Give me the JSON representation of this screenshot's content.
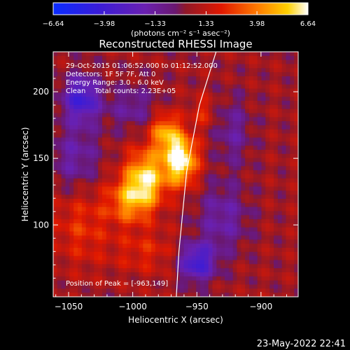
{
  "chart_data": {
    "type": "heatmap",
    "title": "Reconstructed RHESSI Image",
    "xlabel": "Heliocentric X (arcsec)",
    "ylabel": "Heliocentric Y (arcsec)",
    "xlim": [
      -1062,
      -871
    ],
    "ylim": [
      46,
      230
    ],
    "x_ticks": [
      -1050,
      -1000,
      -950,
      -900
    ],
    "x_tick_labels": [
      "−1050",
      "−1000",
      "−950",
      "−900"
    ],
    "y_ticks": [
      100,
      150,
      200
    ],
    "y_tick_labels": [
      "100",
      "150",
      "200"
    ],
    "colorbar": {
      "min": -6.64,
      "max": 6.64,
      "ticks": [
        -6.64,
        -3.98,
        -1.33,
        1.33,
        3.98,
        6.64
      ],
      "tick_labels": [
        "−6.64",
        "−3.98",
        "−1.33",
        "1.33",
        "3.98",
        "6.64"
      ],
      "units": "(photons cm⁻² s⁻¹ asec⁻²)"
    },
    "info_lines": [
      "29-Oct-2015 01:06:52.000 to 01:12:52.000",
      "Detectors: 1F 5F 7F, Att 0",
      "Energy Range: 3.0 - 6.0 keV",
      "Clean    Total counts: 2.23E+05"
    ],
    "peak_text": "Position of Peak = [-963,149]",
    "peak": {
      "x": -963,
      "y": 149
    },
    "components": [
      {
        "x": -963,
        "y": 149,
        "sx": 9,
        "sy": 13,
        "amp": 6.64
      },
      {
        "x": -990,
        "y": 135,
        "sx": 11,
        "sy": 15,
        "amp": 5.2
      },
      {
        "x": -975,
        "y": 170,
        "sx": 8,
        "sy": 10,
        "amp": 3.8
      },
      {
        "x": -1003,
        "y": 118,
        "sx": 12,
        "sy": 12,
        "amp": 3.3
      },
      {
        "x": -945,
        "y": 185,
        "sx": 7,
        "sy": 8,
        "amp": 1.6
      },
      {
        "x": -1040,
        "y": 195,
        "sx": 10,
        "sy": 12,
        "amp": -4.5
      },
      {
        "x": -1045,
        "y": 150,
        "sx": 14,
        "sy": 18,
        "amp": -2.2
      },
      {
        "x": -950,
        "y": 72,
        "sx": 10,
        "sy": 10,
        "amp": -4.5
      },
      {
        "x": -930,
        "y": 105,
        "sx": 14,
        "sy": 18,
        "amp": -2.2
      },
      {
        "x": -1000,
        "y": 188,
        "sx": 14,
        "sy": 12,
        "amp": -1.8
      },
      {
        "x": -922,
        "y": 170,
        "sx": 10,
        "sy": 18,
        "amp": -1.8
      },
      {
        "x": -990,
        "y": 80,
        "sx": 18,
        "sy": 12,
        "amp": 1.5
      },
      {
        "x": -1040,
        "y": 100,
        "sx": 16,
        "sy": 22,
        "amp": 1.8
      }
    ],
    "limb_curve": [
      {
        "x": -935,
        "y": 230
      },
      {
        "x": -948,
        "y": 190
      },
      {
        "x": -958,
        "y": 140
      },
      {
        "x": -964,
        "y": 80
      },
      {
        "x": -966,
        "y": 46
      }
    ]
  },
  "footer": {
    "date": "23-May-2022 22:41"
  }
}
